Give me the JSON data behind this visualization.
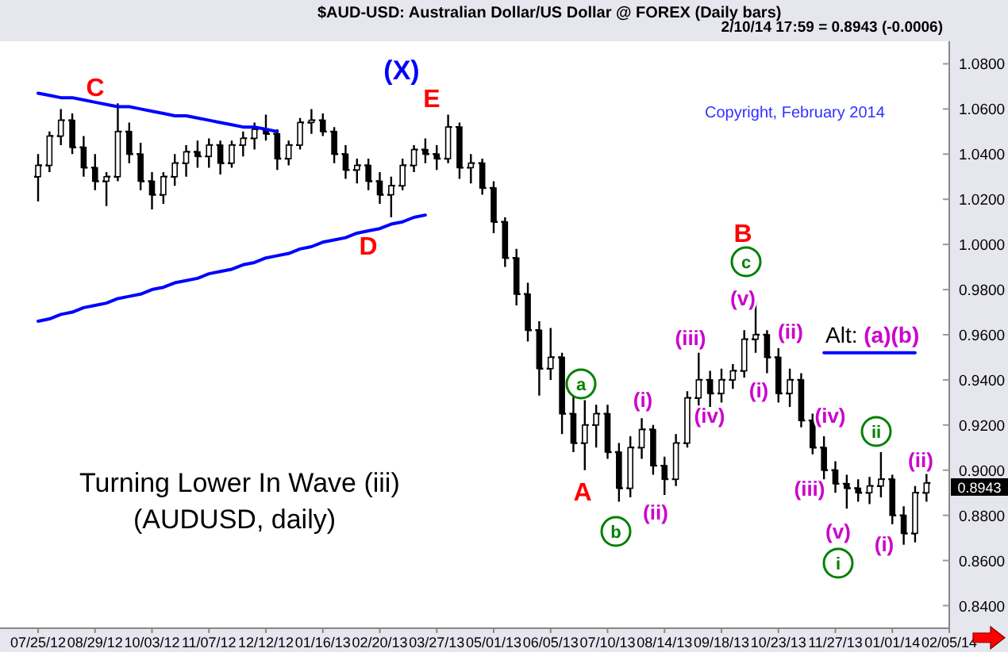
{
  "chart_data": {
    "type": "candlestick",
    "title": "$AUD-USD:  Australian Dollar/US Dollar @ FOREX  (Daily bars)",
    "color": "#000000",
    "categories": [
      "07/25/12",
      null,
      null,
      null,
      null,
      "08/29/12",
      null,
      null,
      null,
      null,
      "10/03/12",
      null,
      null,
      null,
      null,
      "11/07/12",
      null,
      null,
      null,
      null,
      "12/12/12",
      null,
      null,
      null,
      null,
      "01/16/13",
      null,
      null,
      null,
      null,
      "02/20/13",
      null,
      null,
      null,
      null,
      "03/27/13",
      null,
      null,
      null,
      null,
      "05/01/13",
      null,
      null,
      null,
      null,
      "06/05/13",
      null,
      null,
      null,
      null,
      "07/10/13",
      null,
      null,
      null,
      null,
      "08/14/13",
      null,
      null,
      null,
      null,
      "09/18/13",
      null,
      null,
      null,
      null,
      "10/23/13",
      null,
      null,
      null,
      null,
      "11/27/13",
      null,
      null,
      null,
      null,
      "01/01/14",
      null,
      null,
      null,
      null,
      "02/05/14"
    ],
    "ohlc": [
      [
        1.03,
        1.04,
        1.019,
        1.035
      ],
      [
        1.035,
        1.05,
        1.032,
        1.048
      ],
      [
        1.048,
        1.06,
        1.044,
        1.055
      ],
      [
        1.055,
        1.058,
        1.04,
        1.043
      ],
      [
        1.043,
        1.048,
        1.03,
        1.034
      ],
      [
        1.034,
        1.04,
        1.024,
        1.028
      ],
      [
        1.028,
        1.032,
        1.017,
        1.03
      ],
      [
        1.03,
        1.0625,
        1.028,
        1.05
      ],
      [
        1.05,
        1.054,
        1.036,
        1.04
      ],
      [
        1.04,
        1.045,
        1.024,
        1.028
      ],
      [
        1.028,
        1.032,
        1.0155,
        1.022
      ],
      [
        1.022,
        1.032,
        1.018,
        1.03
      ],
      [
        1.03,
        1.04,
        1.026,
        1.036
      ],
      [
        1.036,
        1.044,
        1.03,
        1.041
      ],
      [
        1.041,
        1.046,
        1.034,
        1.039
      ],
      [
        1.039,
        1.047,
        1.034,
        1.044
      ],
      [
        1.044,
        1.046,
        1.031,
        1.036
      ],
      [
        1.036,
        1.046,
        1.034,
        1.044
      ],
      [
        1.044,
        1.05,
        1.039,
        1.047
      ],
      [
        1.047,
        1.054,
        1.042,
        1.051
      ],
      [
        1.051,
        1.0575,
        1.046,
        1.049
      ],
      [
        1.049,
        1.051,
        1.033,
        1.038
      ],
      [
        1.038,
        1.046,
        1.035,
        1.044
      ],
      [
        1.044,
        1.056,
        1.042,
        1.054
      ],
      [
        1.054,
        1.06,
        1.049,
        1.055
      ],
      [
        1.055,
        1.058,
        1.048,
        1.05
      ],
      [
        1.05,
        1.052,
        1.036,
        1.04
      ],
      [
        1.04,
        1.044,
        1.029,
        1.033
      ],
      [
        1.033,
        1.038,
        1.027,
        1.035
      ],
      [
        1.035,
        1.038,
        1.024,
        1.028
      ],
      [
        1.028,
        1.032,
        1.018,
        1.022
      ],
      [
        1.022,
        1.03,
        1.012,
        1.026
      ],
      [
        1.026,
        1.038,
        1.024,
        1.035
      ],
      [
        1.035,
        1.044,
        1.032,
        1.042
      ],
      [
        1.042,
        1.047,
        1.036,
        1.04
      ],
      [
        1.04,
        1.044,
        1.033,
        1.038
      ],
      [
        1.038,
        1.0575,
        1.036,
        1.052
      ],
      [
        1.052,
        1.054,
        1.029,
        1.034
      ],
      [
        1.034,
        1.04,
        1.027,
        1.036
      ],
      [
        1.036,
        1.038,
        1.022,
        1.025
      ],
      [
        1.025,
        1.028,
        1.005,
        1.01
      ],
      [
        1.01,
        1.012,
        0.99,
        0.994
      ],
      [
        0.994,
        0.998,
        0.973,
        0.978
      ],
      [
        0.978,
        0.983,
        0.957,
        0.962
      ],
      [
        0.962,
        0.966,
        0.933,
        0.945
      ],
      [
        0.945,
        0.963,
        0.94,
        0.95
      ],
      [
        0.95,
        0.952,
        0.916,
        0.925
      ],
      [
        0.925,
        0.933,
        0.908,
        0.912
      ],
      [
        0.912,
        0.931,
        0.9,
        0.92
      ],
      [
        0.92,
        0.929,
        0.91,
        0.925
      ],
      [
        0.925,
        0.929,
        0.905,
        0.908
      ],
      [
        0.908,
        0.912,
        0.886,
        0.892
      ],
      [
        0.892,
        0.915,
        0.888,
        0.91
      ],
      [
        0.91,
        0.923,
        0.905,
        0.918
      ],
      [
        0.918,
        0.92,
        0.898,
        0.902
      ],
      [
        0.902,
        0.906,
        0.889,
        0.896
      ],
      [
        0.896,
        0.916,
        0.893,
        0.912
      ],
      [
        0.912,
        0.935,
        0.91,
        0.932
      ],
      [
        0.932,
        0.952,
        0.928,
        0.94
      ],
      [
        0.94,
        0.944,
        0.928,
        0.934
      ],
      [
        0.934,
        0.945,
        0.93,
        0.94
      ],
      [
        0.94,
        0.947,
        0.936,
        0.944
      ],
      [
        0.944,
        0.962,
        0.941,
        0.958
      ],
      [
        0.958,
        0.975,
        0.952,
        0.96
      ],
      [
        0.96,
        0.962,
        0.943,
        0.95
      ],
      [
        0.95,
        0.954,
        0.93,
        0.934
      ],
      [
        0.934,
        0.945,
        0.928,
        0.94
      ],
      [
        0.94,
        0.943,
        0.919,
        0.922
      ],
      [
        0.922,
        0.925,
        0.907,
        0.91
      ],
      [
        0.91,
        0.915,
        0.896,
        0.9
      ],
      [
        0.9,
        0.904,
        0.89,
        0.894
      ],
      [
        0.894,
        0.898,
        0.883,
        0.892
      ],
      [
        0.892,
        0.896,
        0.886,
        0.89
      ],
      [
        0.89,
        0.897,
        0.885,
        0.893
      ],
      [
        0.893,
        0.908,
        0.888,
        0.896
      ],
      [
        0.896,
        0.898,
        0.876,
        0.88
      ],
      [
        0.88,
        0.884,
        0.867,
        0.872
      ],
      [
        0.872,
        0.893,
        0.868,
        0.89
      ],
      [
        0.89,
        0.899,
        0.886,
        0.8943
      ],
      null,
      null
    ],
    "series": [
      {
        "type": "line",
        "color": "#0000ff",
        "values": [
          1.067,
          1.066,
          1.065,
          1.065,
          1.064,
          1.063,
          1.062,
          1.061,
          1.061,
          1.06,
          1.059,
          1.058,
          1.057,
          1.057,
          1.056,
          1.055,
          1.054,
          1.053,
          1.052,
          1.052,
          1.051,
          1.05,
          null,
          null,
          null,
          null,
          null,
          null,
          null,
          null,
          null,
          null,
          null,
          null,
          null,
          null,
          null,
          null,
          null,
          null,
          null,
          null,
          null,
          null,
          null,
          null,
          null,
          null,
          null,
          null,
          null,
          null,
          null,
          null,
          null,
          null,
          null,
          null,
          null,
          null,
          null,
          null,
          null,
          null,
          null,
          null,
          null,
          null,
          null,
          null,
          null,
          null,
          null,
          null,
          null,
          null,
          null,
          null,
          null,
          null,
          null
        ]
      },
      {
        "type": "line",
        "color": "#0000ff",
        "values": [
          0.966,
          0.967,
          0.969,
          0.97,
          0.972,
          0.973,
          0.974,
          0.976,
          0.977,
          0.978,
          0.98,
          0.981,
          0.983,
          0.984,
          0.985,
          0.987,
          0.988,
          0.989,
          0.991,
          0.992,
          0.994,
          0.995,
          0.996,
          0.998,
          0.999,
          1.001,
          1.002,
          1.003,
          1.005,
          1.006,
          1.007,
          1.009,
          1.01,
          1.012,
          1.013,
          null,
          null,
          null,
          null,
          null,
          null,
          null,
          null,
          null,
          null,
          null,
          null,
          null,
          null,
          null,
          null,
          null,
          null,
          null,
          null,
          null,
          null,
          null,
          null,
          null,
          null,
          null,
          null,
          null,
          null,
          null,
          null,
          null,
          null,
          null,
          null,
          null,
          null,
          null,
          null,
          null,
          null,
          null,
          null,
          null,
          null
        ]
      },
      {
        "type": "line",
        "color": "#0000ff",
        "values": [
          null,
          null,
          null,
          null,
          null,
          null,
          null,
          null,
          null,
          null,
          null,
          null,
          null,
          null,
          null,
          null,
          null,
          null,
          null,
          null,
          null,
          null,
          null,
          null,
          null,
          null,
          null,
          null,
          null,
          null,
          null,
          null,
          null,
          null,
          null,
          null,
          null,
          null,
          null,
          null,
          null,
          null,
          null,
          null,
          null,
          null,
          null,
          null,
          null,
          null,
          null,
          null,
          null,
          null,
          null,
          null,
          null,
          null,
          null,
          null,
          null,
          null,
          null,
          null,
          null,
          null,
          null,
          null,
          null,
          0.952,
          0.952,
          0.952,
          0.952,
          0.952,
          0.952,
          0.952,
          0.952,
          0.952,
          null,
          null,
          null
        ]
      }
    ],
    "ylim": [
      0.83,
      1.09
    ],
    "yticks": [
      {
        "value": 0.84,
        "label": "0.8400"
      },
      {
        "value": 0.86,
        "label": "0.8600"
      },
      {
        "value": 0.88,
        "label": "0.8800"
      },
      {
        "value": 0.9,
        "label": "0.9000"
      },
      {
        "value": 0.92,
        "label": "0.9200"
      },
      {
        "value": 0.94,
        "label": "0.9400"
      },
      {
        "value": 0.96,
        "label": "0.9600"
      },
      {
        "value": 0.98,
        "label": "0.9800"
      },
      {
        "value": 1.0,
        "label": "1.0000"
      },
      {
        "value": 1.02,
        "label": "1.0200"
      },
      {
        "value": 1.04,
        "label": "1.0400"
      },
      {
        "value": 1.06,
        "label": "1.0600"
      },
      {
        "value": 1.08,
        "label": "1.0800"
      }
    ],
    "annotations": [
      "2/10/14 17:59 = 0.8943 (-0.0006)",
      "Copyright, February 2014",
      "Turning Lower In Wave (iii)",
      "(AUDUSD, daily)",
      "C",
      "D",
      "(X)",
      "E",
      "A",
      "a",
      "b",
      "(i)",
      "(ii)",
      "(iii)",
      "(iv)",
      "(v)",
      "c",
      "B",
      "(i)",
      "(ii)",
      "(iii)",
      "(iv)",
      "(v)",
      "i",
      "ii",
      "(i)",
      "(ii)",
      "Alt: (a)(b)",
      "0.8943"
    ]
  }
}
